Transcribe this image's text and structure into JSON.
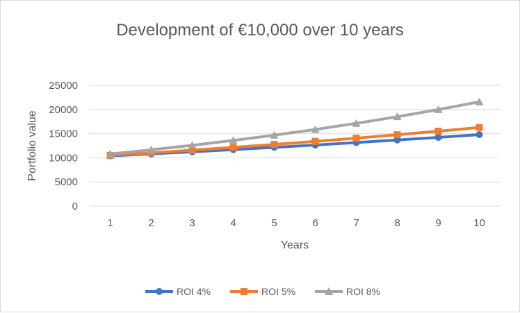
{
  "chart_data": {
    "type": "line",
    "title": "Development of €10,000 over 10 years",
    "xlabel": "Years",
    "ylabel": "Portfolio value",
    "x": [
      1,
      2,
      3,
      4,
      5,
      6,
      7,
      8,
      9,
      10
    ],
    "ylim": [
      0,
      25000
    ],
    "yticks": [
      0,
      5000,
      10000,
      15000,
      20000,
      25000
    ],
    "grid": true,
    "legend": "bottom",
    "series": [
      {
        "name": "ROI 4%",
        "color": "#4472c4",
        "marker": "circle",
        "values": [
          10400,
          10816,
          11249,
          11699,
          12167,
          12653,
          13159,
          13686,
          14233,
          14802
        ]
      },
      {
        "name": "ROI 5%",
        "color": "#ed7d31",
        "marker": "square",
        "values": [
          10500,
          11025,
          11576,
          12155,
          12763,
          13401,
          14071,
          14775,
          15513,
          16289
        ]
      },
      {
        "name": "ROI 8%",
        "color": "#a5a5a5",
        "marker": "triangle",
        "values": [
          10800,
          11664,
          12597,
          13605,
          14693,
          15869,
          17138,
          18509,
          19990,
          21589
        ]
      }
    ]
  }
}
